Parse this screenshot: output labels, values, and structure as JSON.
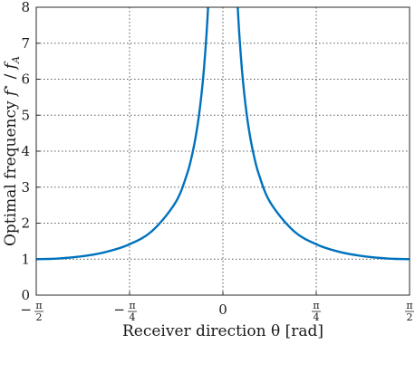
{
  "chart_data": {
    "type": "line",
    "xlabel": "Receiver direction θ [rad]",
    "ylabel": "Optimal frequency f* / f_A",
    "ylabel_parts": {
      "text": "Optimal frequency ",
      "f": "f",
      "star": "⋆",
      "slash": " / ",
      "fA_f": "f",
      "fA_sub": "A"
    },
    "xlim": [
      -1.5708,
      1.5708
    ],
    "ylim": [
      0,
      8
    ],
    "xticks": [
      {
        "value": -1.5708,
        "sign": "−",
        "num": "π",
        "den": "2"
      },
      {
        "value": -0.7854,
        "sign": "−",
        "num": "π",
        "den": "4"
      },
      {
        "value": 0,
        "label": "0"
      },
      {
        "value": 0.7854,
        "sign": "",
        "num": "π",
        "den": "4"
      },
      {
        "value": 1.5708,
        "sign": "",
        "num": "π",
        "den": "2"
      }
    ],
    "yticks": [
      "0",
      "1",
      "2",
      "3",
      "4",
      "5",
      "6",
      "7",
      "8"
    ],
    "grid": true,
    "series": [
      {
        "color": "#0072BD",
        "x": [
          -1.5708,
          -1.4,
          -1.2,
          -1.0,
          -0.8,
          -0.6,
          -0.4,
          -0.3,
          -0.25,
          -0.22,
          -0.2,
          -0.18,
          -0.16,
          -0.14,
          -0.128,
          -0.125,
          0.125,
          0.128,
          0.14,
          0.16,
          0.18,
          0.2,
          0.22,
          0.25,
          0.3,
          0.4,
          0.6,
          0.8,
          1.0,
          1.2,
          1.4,
          1.5708
        ],
        "y": [
          1.0,
          1.015,
          1.073,
          1.188,
          1.394,
          1.771,
          2.568,
          3.384,
          4.042,
          4.58,
          5.033,
          5.584,
          6.27,
          7.15,
          7.8,
          8.0,
          8.0,
          7.8,
          7.15,
          6.27,
          5.584,
          5.033,
          4.58,
          4.042,
          3.384,
          2.568,
          1.771,
          1.394,
          1.188,
          1.073,
          1.015,
          1.0
        ]
      }
    ]
  }
}
